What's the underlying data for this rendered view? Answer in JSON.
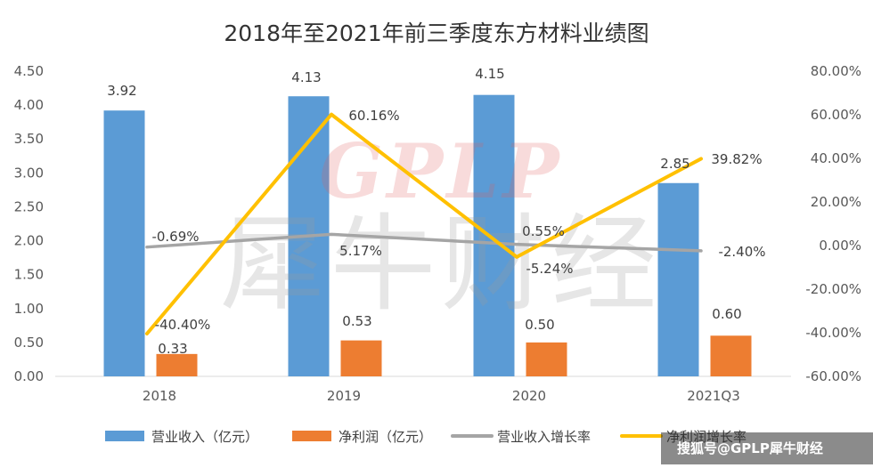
{
  "chart_data": {
    "type": "bar",
    "title": "2018年至2021年前三季度东方材料业绩图",
    "categories": [
      "2018",
      "2019",
      "2020",
      "2021Q3"
    ],
    "series": [
      {
        "name": "营业收入（亿元）",
        "kind": "bar",
        "axis": "left",
        "color": "#5B9BD5",
        "values": [
          3.92,
          4.13,
          4.15,
          2.85
        ],
        "labels": [
          "3.92",
          "4.13",
          "4.15",
          "2.85"
        ]
      },
      {
        "name": "净利润（亿元）",
        "kind": "bar",
        "axis": "left",
        "color": "#ED7D31",
        "values": [
          0.33,
          0.53,
          0.5,
          0.6
        ],
        "labels": [
          "0.33",
          "0.53",
          "0.50",
          "0.60"
        ]
      },
      {
        "name": "营业收入增长率",
        "kind": "line",
        "axis": "right",
        "color": "#A5A5A5",
        "values": [
          -0.69,
          5.17,
          0.55,
          -2.4
        ],
        "labels": [
          "-0.69%",
          "5.17%",
          "0.55%",
          "-2.40%"
        ]
      },
      {
        "name": "净利润增长率",
        "kind": "line",
        "axis": "right",
        "color": "#FFC000",
        "values": [
          -40.4,
          60.16,
          -5.24,
          39.82
        ],
        "labels": [
          "-40.40%",
          "60.16%",
          "-5.24%",
          "39.82%"
        ]
      }
    ],
    "y_left": {
      "min": 0,
      "max": 4.5,
      "step": 0.5,
      "ticks": [
        "0.00",
        "0.50",
        "1.00",
        "1.50",
        "2.00",
        "2.50",
        "3.00",
        "3.50",
        "4.00",
        "4.50"
      ]
    },
    "y_right": {
      "min": -60,
      "max": 80,
      "step": 20,
      "ticks": [
        "-60.00%",
        "-40.00%",
        "-20.00%",
        "0.00%",
        "20.00%",
        "40.00%",
        "60.00%",
        "80.00%"
      ]
    },
    "gridlines": false,
    "legend_position": "bottom"
  },
  "watermark": {
    "latin": "GPLP",
    "cjk": "犀牛财经"
  },
  "credit": "搜狐号@GPLP犀牛财经"
}
